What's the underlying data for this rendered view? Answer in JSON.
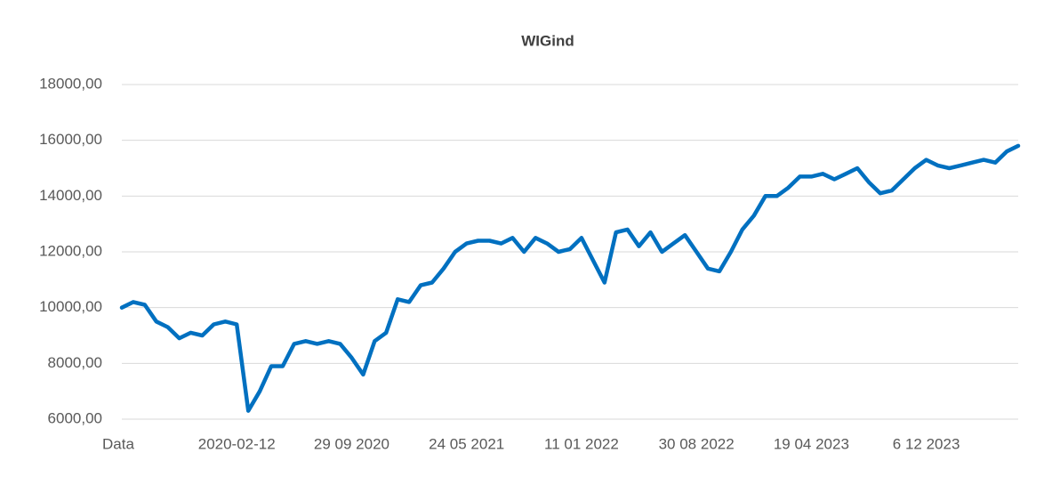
{
  "chart_data": {
    "type": "line",
    "title": "WIGind",
    "categories": [
      "Data",
      null,
      null,
      null,
      null,
      null,
      null,
      null,
      null,
      null,
      "2020-02-12",
      null,
      null,
      null,
      null,
      null,
      null,
      null,
      null,
      null,
      "29 09 2020",
      null,
      null,
      null,
      null,
      null,
      null,
      null,
      null,
      null,
      "24 05 2021",
      null,
      null,
      null,
      null,
      null,
      null,
      null,
      null,
      null,
      "11 01 2022",
      null,
      null,
      null,
      null,
      null,
      null,
      null,
      null,
      null,
      "30 08 2022",
      null,
      null,
      null,
      null,
      null,
      null,
      null,
      null,
      null,
      "19 04 2023",
      null,
      null,
      null,
      null,
      null,
      null,
      null,
      null,
      null,
      "6 12 2023",
      null,
      null,
      null,
      null,
      null,
      null,
      null,
      null
    ],
    "series": [
      {
        "name": "WIGind",
        "color": "#0070c0",
        "values": [
          10000,
          10200,
          10100,
          9500,
          9300,
          8900,
          9100,
          9000,
          9400,
          9500,
          9400,
          6300,
          7000,
          7900,
          7900,
          8700,
          8800,
          8700,
          8800,
          8700,
          8200,
          7600,
          8800,
          9100,
          10300,
          10200,
          10800,
          10900,
          11400,
          12000,
          12300,
          12400,
          12400,
          12300,
          12500,
          12000,
          12500,
          12300,
          12000,
          12100,
          12500,
          11700,
          10900,
          12700,
          12800,
          12200,
          12700,
          12000,
          12300,
          12600,
          12000,
          11400,
          11300,
          12000,
          12800,
          13300,
          14000,
          14000,
          14300,
          14700,
          14700,
          14800,
          14600,
          14800,
          15000,
          14500,
          14100,
          14200,
          14600,
          15000,
          15300,
          15100,
          15000,
          15100,
          15200,
          15300,
          15200,
          15600,
          15800
        ]
      }
    ],
    "ylim": [
      6000,
      18000
    ],
    "yticks": [
      {
        "value": 6000,
        "label": "6000,00"
      },
      {
        "value": 8000,
        "label": "8000,00"
      },
      {
        "value": 10000,
        "label": "10000,00"
      },
      {
        "value": 12000,
        "label": "12000,00"
      },
      {
        "value": 14000,
        "label": "14000,00"
      },
      {
        "value": 16000,
        "label": "16000,00"
      },
      {
        "value": 18000,
        "label": "18000,00"
      }
    ],
    "grid": true
  }
}
